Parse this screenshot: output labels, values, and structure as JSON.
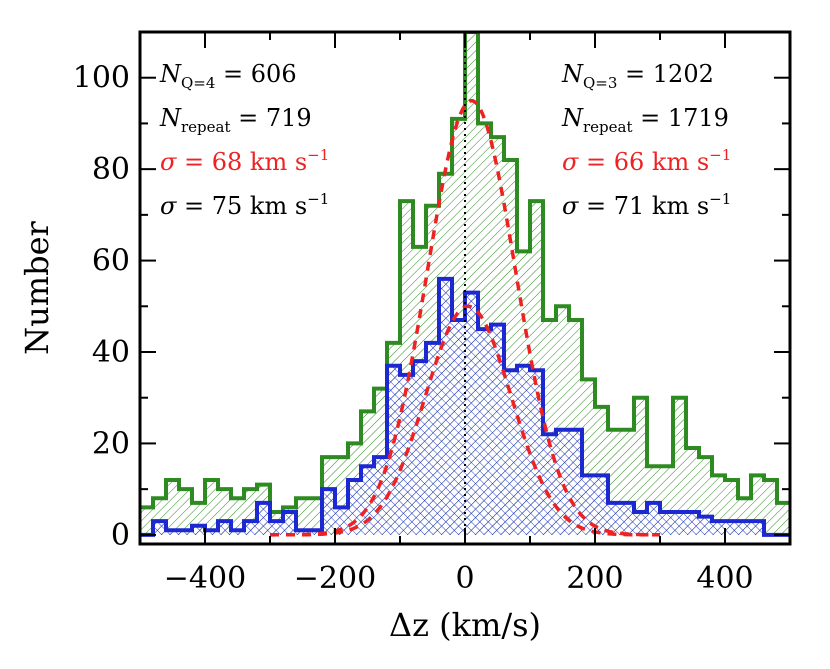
{
  "chart_data": {
    "type": "histogram",
    "xlabel": "Δz (km/s)",
    "ylabel": "Number",
    "xlim": [
      -500,
      500
    ],
    "ylim": [
      -2,
      110
    ],
    "xticks": [
      -400,
      -200,
      0,
      200,
      400
    ],
    "xtick_labels": [
      "−400",
      "−200",
      "0",
      "200",
      "400"
    ],
    "yticks": [
      0,
      20,
      40,
      60,
      80,
      100
    ],
    "ytick_labels": [
      "0",
      "20",
      "40",
      "60",
      "80",
      "100"
    ],
    "grid": false,
    "bin_edges": [
      -500,
      -480,
      -460,
      -440,
      -420,
      -400,
      -380,
      -360,
      -340,
      -320,
      -300,
      -280,
      -260,
      -240,
      -220,
      -200,
      -180,
      -160,
      -140,
      -120,
      -100,
      -80,
      -60,
      -40,
      -20,
      0,
      20,
      40,
      60,
      80,
      100,
      120,
      140,
      160,
      180,
      200,
      220,
      240,
      260,
      280,
      300,
      320,
      340,
      360,
      380,
      400,
      420,
      440,
      460,
      480,
      500
    ],
    "series": [
      {
        "color": "#2e8b22",
        "counts": [
          6,
          8,
          12,
          10,
          7,
          12,
          10,
          8,
          10,
          11,
          5,
          6,
          8,
          8,
          17,
          17,
          20,
          27,
          32,
          42,
          73,
          63,
          72,
          79,
          91,
          110,
          90,
          87,
          82,
          62,
          73,
          47,
          50,
          47,
          34,
          28,
          23,
          23,
          30,
          15,
          15,
          30,
          19,
          17,
          13,
          12,
          8,
          13,
          12,
          7
        ]
      },
      {
        "color": "#1c28d0",
        "counts": [
          0,
          3,
          1,
          1,
          2,
          1,
          3,
          1,
          3,
          7,
          3,
          5,
          1,
          1,
          10,
          6,
          12,
          15,
          17,
          37,
          35,
          38,
          42,
          56,
          47,
          53,
          45,
          46,
          36,
          37,
          36,
          22,
          23,
          23,
          13,
          13,
          7,
          7,
          5,
          7,
          5,
          5,
          5,
          4,
          3,
          3,
          3,
          3,
          0,
          0
        ]
      }
    ],
    "fits": [
      {
        "color": "#ee2222",
        "sigma": 68,
        "amplitude": 95,
        "mu": 10,
        "range": [
          -300,
          300
        ]
      },
      {
        "color": "#ee2222",
        "sigma": 66,
        "amplitude": 50,
        "mu": 5,
        "range": [
          -300,
          300
        ]
      }
    ],
    "reference_line": {
      "x": 0,
      "style": "dotted"
    }
  },
  "annotations": {
    "left": [
      {
        "sym": "N",
        "sub": "Q=4",
        "rest": " = 606",
        "color": "#000000"
      },
      {
        "sym": "N",
        "sub": "repeat",
        "rest": " = 719",
        "color": "#000000"
      },
      {
        "sym": "σ",
        "sub": "",
        "rest": " = 68 km s",
        "sup": "−1",
        "color": "#ee2222"
      },
      {
        "sym": "σ",
        "sub": "",
        "rest": " = 75 km s",
        "sup": "−1",
        "color": "#000000"
      }
    ],
    "right": [
      {
        "sym": "N",
        "sub": "Q=3",
        "rest": " = 1202",
        "color": "#000000"
      },
      {
        "sym": "N",
        "sub": "repeat",
        "rest": " = 1719",
        "color": "#000000"
      },
      {
        "sym": "σ",
        "sub": "",
        "rest": " = 66 km s",
        "sup": "−1",
        "color": "#ee2222"
      },
      {
        "sym": "σ",
        "sub": "",
        "rest": " = 71 km s",
        "sup": "−1",
        "color": "#000000"
      }
    ]
  }
}
